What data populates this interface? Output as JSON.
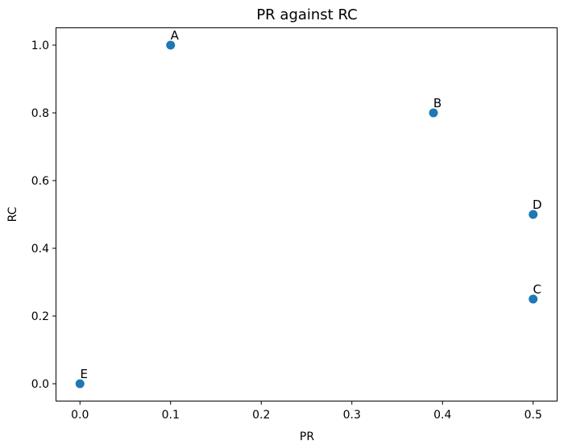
{
  "chart_data": {
    "type": "scatter",
    "title": "PR against RC",
    "xlabel": "PR",
    "ylabel": "RC",
    "xlim": [
      -0.026,
      0.526
    ],
    "ylim": [
      -0.05,
      1.05
    ],
    "xticks": [
      0.0,
      0.1,
      0.2,
      0.3,
      0.4,
      0.5
    ],
    "yticks": [
      0.0,
      0.2,
      0.4,
      0.6,
      0.8,
      1.0
    ],
    "xtick_labels": [
      "0.0",
      "0.1",
      "0.2",
      "0.3",
      "0.4",
      "0.5"
    ],
    "ytick_labels": [
      "0.0",
      "0.2",
      "0.4",
      "0.6",
      "0.8",
      "1.0"
    ],
    "grid": false,
    "color": "#1f77b4",
    "points": [
      {
        "label": "A",
        "x": 0.1,
        "y": 1.0
      },
      {
        "label": "B",
        "x": 0.39,
        "y": 0.8
      },
      {
        "label": "C",
        "x": 0.5,
        "y": 0.25
      },
      {
        "label": "D",
        "x": 0.5,
        "y": 0.5
      },
      {
        "label": "E",
        "x": 0.0,
        "y": 0.0
      }
    ]
  }
}
